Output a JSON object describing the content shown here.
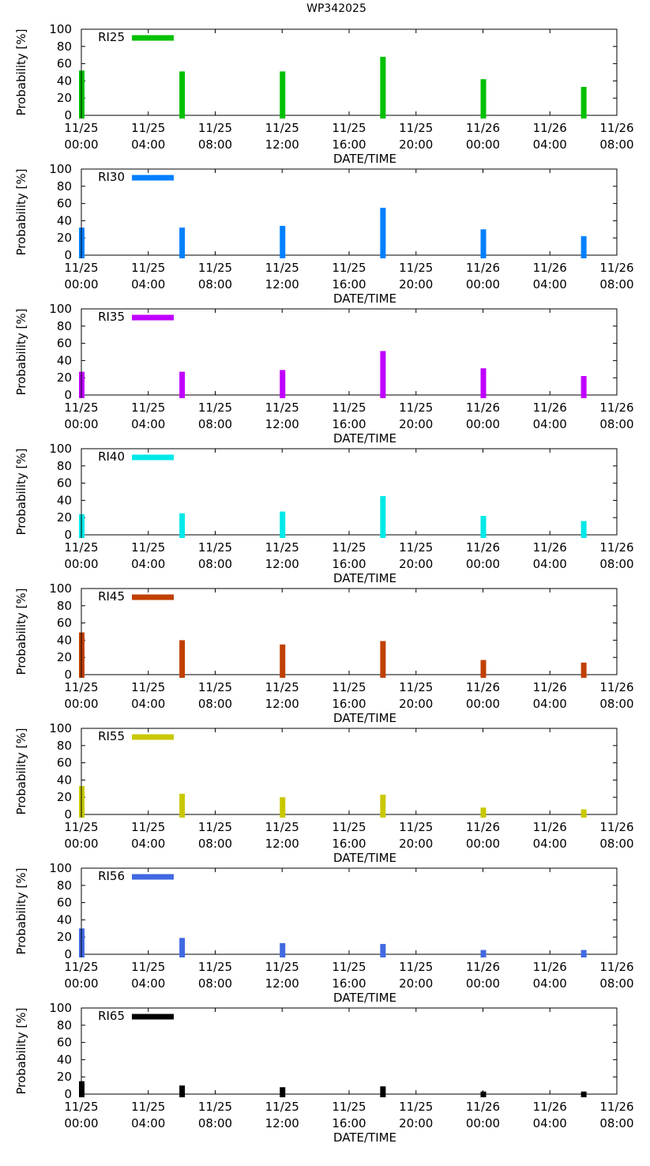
{
  "title": "WP342025",
  "chart_data": [
    {
      "type": "bar",
      "legend": "RI25",
      "color": "#00c000",
      "xlabel": "DATE/TIME",
      "ylabel": "Probability [%]",
      "ylim": [
        0,
        100
      ],
      "yticks": [
        "0",
        "20",
        "40",
        "60",
        "80",
        "100"
      ],
      "xticks": [
        {
          "date": "11/25",
          "time": "00:00"
        },
        {
          "date": "11/25",
          "time": "04:00"
        },
        {
          "date": "11/25",
          "time": "08:00"
        },
        {
          "date": "11/25",
          "time": "12:00"
        },
        {
          "date": "11/25",
          "time": "16:00"
        },
        {
          "date": "11/25",
          "time": "20:00"
        },
        {
          "date": "11/26",
          "time": "00:00"
        },
        {
          "date": "11/26",
          "time": "04:00"
        },
        {
          "date": "11/26",
          "time": "08:00"
        }
      ],
      "xrange_hours": [
        0,
        32
      ],
      "x_hours": [
        0,
        6,
        12,
        18,
        24,
        30
      ],
      "values": [
        52,
        51,
        51,
        68,
        42,
        33
      ]
    },
    {
      "type": "bar",
      "legend": "RI30",
      "color": "#0080ff",
      "xlabel": "DATE/TIME",
      "ylabel": "Probability [%]",
      "ylim": [
        0,
        100
      ],
      "yticks": [
        "0",
        "20",
        "40",
        "60",
        "80",
        "100"
      ],
      "xticks": [
        {
          "date": "11/25",
          "time": "00:00"
        },
        {
          "date": "11/25",
          "time": "04:00"
        },
        {
          "date": "11/25",
          "time": "08:00"
        },
        {
          "date": "11/25",
          "time": "12:00"
        },
        {
          "date": "11/25",
          "time": "16:00"
        },
        {
          "date": "11/25",
          "time": "20:00"
        },
        {
          "date": "11/26",
          "time": "00:00"
        },
        {
          "date": "11/26",
          "time": "04:00"
        },
        {
          "date": "11/26",
          "time": "08:00"
        }
      ],
      "xrange_hours": [
        0,
        32
      ],
      "x_hours": [
        0,
        6,
        12,
        18,
        24,
        30
      ],
      "values": [
        32,
        32,
        34,
        55,
        30,
        22
      ]
    },
    {
      "type": "bar",
      "legend": "RI35",
      "color": "#c000ff",
      "xlabel": "DATE/TIME",
      "ylabel": "Probability [%]",
      "ylim": [
        0,
        100
      ],
      "yticks": [
        "0",
        "20",
        "40",
        "60",
        "80",
        "100"
      ],
      "xticks": [
        {
          "date": "11/25",
          "time": "00:00"
        },
        {
          "date": "11/25",
          "time": "04:00"
        },
        {
          "date": "11/25",
          "time": "08:00"
        },
        {
          "date": "11/25",
          "time": "12:00"
        },
        {
          "date": "11/25",
          "time": "16:00"
        },
        {
          "date": "11/25",
          "time": "20:00"
        },
        {
          "date": "11/26",
          "time": "00:00"
        },
        {
          "date": "11/26",
          "time": "04:00"
        },
        {
          "date": "11/26",
          "time": "08:00"
        }
      ],
      "xrange_hours": [
        0,
        32
      ],
      "x_hours": [
        0,
        6,
        12,
        18,
        24,
        30
      ],
      "values": [
        27,
        27,
        29,
        51,
        31,
        22
      ]
    },
    {
      "type": "bar",
      "legend": "RI40",
      "color": "#00e8e8",
      "xlabel": "DATE/TIME",
      "ylabel": "Probability [%]",
      "ylim": [
        0,
        100
      ],
      "yticks": [
        "0",
        "20",
        "40",
        "60",
        "80",
        "100"
      ],
      "xticks": [
        {
          "date": "11/25",
          "time": "00:00"
        },
        {
          "date": "11/25",
          "time": "04:00"
        },
        {
          "date": "11/25",
          "time": "08:00"
        },
        {
          "date": "11/25",
          "time": "12:00"
        },
        {
          "date": "11/25",
          "time": "16:00"
        },
        {
          "date": "11/25",
          "time": "20:00"
        },
        {
          "date": "11/26",
          "time": "00:00"
        },
        {
          "date": "11/26",
          "time": "04:00"
        },
        {
          "date": "11/26",
          "time": "08:00"
        }
      ],
      "xrange_hours": [
        0,
        32
      ],
      "x_hours": [
        0,
        6,
        12,
        18,
        24,
        30
      ],
      "values": [
        24,
        25,
        27,
        45,
        22,
        16
      ]
    },
    {
      "type": "bar",
      "legend": "RI45",
      "color": "#c04000",
      "xlabel": "DATE/TIME",
      "ylabel": "Probability [%]",
      "ylim": [
        0,
        100
      ],
      "yticks": [
        "0",
        "20",
        "40",
        "60",
        "80",
        "100"
      ],
      "xticks": [
        {
          "date": "11/25",
          "time": "00:00"
        },
        {
          "date": "11/25",
          "time": "04:00"
        },
        {
          "date": "11/25",
          "time": "08:00"
        },
        {
          "date": "11/25",
          "time": "12:00"
        },
        {
          "date": "11/25",
          "time": "16:00"
        },
        {
          "date": "11/25",
          "time": "20:00"
        },
        {
          "date": "11/26",
          "time": "00:00"
        },
        {
          "date": "11/26",
          "time": "04:00"
        },
        {
          "date": "11/26",
          "time": "08:00"
        }
      ],
      "xrange_hours": [
        0,
        32
      ],
      "x_hours": [
        0,
        6,
        12,
        18,
        24,
        30
      ],
      "values": [
        49,
        40,
        35,
        39,
        17,
        14
      ]
    },
    {
      "type": "bar",
      "legend": "RI55",
      "color": "#c8c800",
      "xlabel": "DATE/TIME",
      "ylabel": "Probability [%]",
      "ylim": [
        0,
        100
      ],
      "yticks": [
        "0",
        "20",
        "40",
        "60",
        "80",
        "100"
      ],
      "xticks": [
        {
          "date": "11/25",
          "time": "00:00"
        },
        {
          "date": "11/25",
          "time": "04:00"
        },
        {
          "date": "11/25",
          "time": "08:00"
        },
        {
          "date": "11/25",
          "time": "12:00"
        },
        {
          "date": "11/25",
          "time": "16:00"
        },
        {
          "date": "11/25",
          "time": "20:00"
        },
        {
          "date": "11/26",
          "time": "00:00"
        },
        {
          "date": "11/26",
          "time": "04:00"
        },
        {
          "date": "11/26",
          "time": "08:00"
        }
      ],
      "xrange_hours": [
        0,
        32
      ],
      "x_hours": [
        0,
        6,
        12,
        18,
        24,
        30
      ],
      "values": [
        33,
        24,
        20,
        23,
        8,
        6
      ]
    },
    {
      "type": "bar",
      "legend": "RI56",
      "color": "#4169e1",
      "xlabel": "DATE/TIME",
      "ylabel": "Probability [%]",
      "ylim": [
        0,
        100
      ],
      "yticks": [
        "0",
        "20",
        "40",
        "60",
        "80",
        "100"
      ],
      "xticks": [
        {
          "date": "11/25",
          "time": "00:00"
        },
        {
          "date": "11/25",
          "time": "04:00"
        },
        {
          "date": "11/25",
          "time": "08:00"
        },
        {
          "date": "11/25",
          "time": "12:00"
        },
        {
          "date": "11/25",
          "time": "16:00"
        },
        {
          "date": "11/25",
          "time": "20:00"
        },
        {
          "date": "11/26",
          "time": "00:00"
        },
        {
          "date": "11/26",
          "time": "04:00"
        },
        {
          "date": "11/26",
          "time": "08:00"
        }
      ],
      "xrange_hours": [
        0,
        32
      ],
      "x_hours": [
        0,
        6,
        12,
        18,
        24,
        30
      ],
      "values": [
        30,
        19,
        13,
        12,
        5,
        5
      ]
    },
    {
      "type": "bar",
      "legend": "RI65",
      "color": "#000000",
      "xlabel": "DATE/TIME",
      "ylabel": "Probability [%]",
      "ylim": [
        0,
        100
      ],
      "yticks": [
        "0",
        "20",
        "40",
        "60",
        "80",
        "100"
      ],
      "xticks": [
        {
          "date": "11/25",
          "time": "00:00"
        },
        {
          "date": "11/25",
          "time": "04:00"
        },
        {
          "date": "11/25",
          "time": "08:00"
        },
        {
          "date": "11/25",
          "time": "12:00"
        },
        {
          "date": "11/25",
          "time": "16:00"
        },
        {
          "date": "11/25",
          "time": "20:00"
        },
        {
          "date": "11/26",
          "time": "00:00"
        },
        {
          "date": "11/26",
          "time": "04:00"
        },
        {
          "date": "11/26",
          "time": "08:00"
        }
      ],
      "xrange_hours": [
        0,
        32
      ],
      "x_hours": [
        0,
        6,
        12,
        18,
        24,
        30
      ],
      "values": [
        15,
        10,
        8,
        9,
        3,
        3
      ]
    }
  ]
}
